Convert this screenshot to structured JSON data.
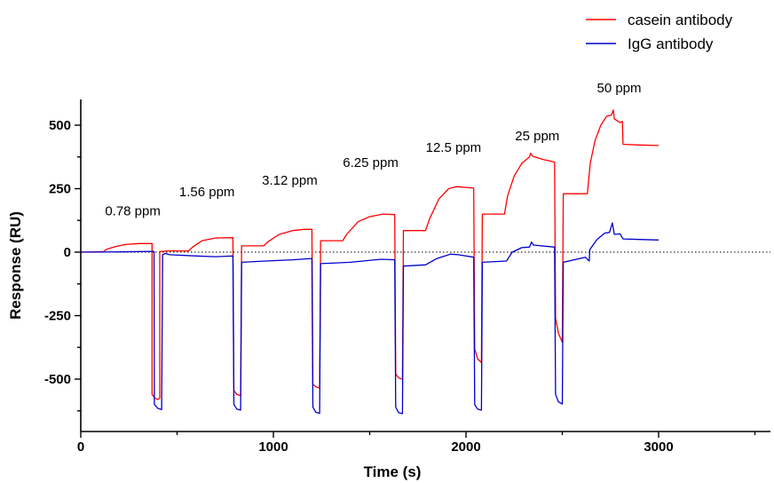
{
  "chart_data": {
    "type": "line",
    "xlabel": "Time (s)",
    "ylabel": "Response (RU)",
    "xlim": [
      0,
      3600
    ],
    "ylim": [
      -720,
      600
    ],
    "x_ticks": [
      0,
      1000,
      2000,
      3000
    ],
    "y_ticks": [
      500,
      250,
      0,
      -250,
      -500
    ],
    "x_tick_labels": [
      "0",
      "1000",
      "2000",
      "3000"
    ],
    "y_tick_labels": [
      "500",
      "250",
      "0",
      "-250",
      "-500"
    ],
    "zero_reference_line": true,
    "grid": false,
    "legend_position": "top-right",
    "annotations": [
      {
        "text": "0.78 ppm",
        "x": 270,
        "y": 145
      },
      {
        "text": "1.56 ppm",
        "x": 655,
        "y": 220
      },
      {
        "text": "3.12 ppm",
        "x": 1085,
        "y": 265
      },
      {
        "text": "6.25 ppm",
        "x": 1505,
        "y": 335
      },
      {
        "text": "12.5 ppm",
        "x": 1935,
        "y": 395
      },
      {
        "text": "25 ppm",
        "x": 2370,
        "y": 440
      },
      {
        "text": "50 ppm",
        "x": 2795,
        "y": 630
      }
    ],
    "series": [
      {
        "name": "casein antibody",
        "color": "#ff0000",
        "points": [
          [
            0,
            0
          ],
          [
            120,
            2
          ],
          [
            130,
            10
          ],
          [
            180,
            22
          ],
          [
            230,
            30
          ],
          [
            300,
            34
          ],
          [
            370,
            34
          ],
          [
            370,
            -560
          ],
          [
            385,
            -575
          ],
          [
            400,
            -580
          ],
          [
            410,
            -575
          ],
          [
            410,
            2
          ],
          [
            450,
            5
          ],
          [
            560,
            5
          ],
          [
            580,
            20
          ],
          [
            630,
            45
          ],
          [
            700,
            56
          ],
          [
            790,
            57
          ],
          [
            795,
            -545
          ],
          [
            810,
            -560
          ],
          [
            830,
            -565
          ],
          [
            835,
            25
          ],
          [
            950,
            25
          ],
          [
            970,
            40
          ],
          [
            1030,
            70
          ],
          [
            1100,
            85
          ],
          [
            1160,
            90
          ],
          [
            1200,
            90
          ],
          [
            1205,
            -520
          ],
          [
            1220,
            -530
          ],
          [
            1240,
            -535
          ],
          [
            1245,
            45
          ],
          [
            1360,
            45
          ],
          [
            1380,
            70
          ],
          [
            1440,
            120
          ],
          [
            1500,
            140
          ],
          [
            1570,
            150
          ],
          [
            1630,
            148
          ],
          [
            1635,
            -480
          ],
          [
            1650,
            -495
          ],
          [
            1670,
            -500
          ],
          [
            1675,
            85
          ],
          [
            1790,
            85
          ],
          [
            1810,
            130
          ],
          [
            1860,
            210
          ],
          [
            1910,
            250
          ],
          [
            1950,
            258
          ],
          [
            2040,
            252
          ],
          [
            2045,
            -380
          ],
          [
            2060,
            -420
          ],
          [
            2080,
            -435
          ],
          [
            2085,
            150
          ],
          [
            2200,
            150
          ],
          [
            2215,
            220
          ],
          [
            2250,
            300
          ],
          [
            2290,
            350
          ],
          [
            2330,
            375
          ],
          [
            2335,
            390
          ],
          [
            2345,
            378
          ],
          [
            2400,
            365
          ],
          [
            2460,
            355
          ],
          [
            2465,
            -260
          ],
          [
            2480,
            -320
          ],
          [
            2500,
            -355
          ],
          [
            2505,
            230
          ],
          [
            2630,
            230
          ],
          [
            2645,
            350
          ],
          [
            2670,
            440
          ],
          [
            2700,
            500
          ],
          [
            2730,
            535
          ],
          [
            2755,
            540
          ],
          [
            2765,
            560
          ],
          [
            2770,
            525
          ],
          [
            2800,
            510
          ],
          [
            2812,
            515
          ],
          [
            2815,
            425
          ],
          [
            2900,
            422
          ],
          [
            3000,
            420
          ]
        ]
      },
      {
        "name": "IgG antibody",
        "color": "#0000cc",
        "points": [
          [
            0,
            0
          ],
          [
            200,
            1
          ],
          [
            380,
            3
          ],
          [
            382,
            -600
          ],
          [
            400,
            -615
          ],
          [
            420,
            -620
          ],
          [
            425,
            -10
          ],
          [
            440,
            -5
          ],
          [
            460,
            -10
          ],
          [
            600,
            -15
          ],
          [
            700,
            -18
          ],
          [
            790,
            -15
          ],
          [
            795,
            -600
          ],
          [
            810,
            -618
          ],
          [
            830,
            -622
          ],
          [
            835,
            -40
          ],
          [
            960,
            -35
          ],
          [
            1100,
            -30
          ],
          [
            1200,
            -25
          ],
          [
            1205,
            -610
          ],
          [
            1220,
            -630
          ],
          [
            1240,
            -635
          ],
          [
            1245,
            -45
          ],
          [
            1400,
            -40
          ],
          [
            1560,
            -28
          ],
          [
            1630,
            -30
          ],
          [
            1635,
            -610
          ],
          [
            1650,
            -632
          ],
          [
            1670,
            -636
          ],
          [
            1675,
            -55
          ],
          [
            1790,
            -50
          ],
          [
            1850,
            -25
          ],
          [
            1920,
            -8
          ],
          [
            1960,
            -10
          ],
          [
            2040,
            -20
          ],
          [
            2045,
            -600
          ],
          [
            2060,
            -618
          ],
          [
            2080,
            -622
          ],
          [
            2085,
            -40
          ],
          [
            2210,
            -35
          ],
          [
            2240,
            0
          ],
          [
            2290,
            18
          ],
          [
            2330,
            20
          ],
          [
            2340,
            40
          ],
          [
            2350,
            28
          ],
          [
            2460,
            20
          ],
          [
            2465,
            -560
          ],
          [
            2480,
            -590
          ],
          [
            2500,
            -598
          ],
          [
            2505,
            -40
          ],
          [
            2620,
            -20
          ],
          [
            2640,
            -35
          ],
          [
            2643,
            10
          ],
          [
            2680,
            50
          ],
          [
            2720,
            75
          ],
          [
            2745,
            78
          ],
          [
            2760,
            115
          ],
          [
            2770,
            70
          ],
          [
            2800,
            72
          ],
          [
            2815,
            52
          ],
          [
            2900,
            50
          ],
          [
            3000,
            48
          ]
        ]
      }
    ]
  }
}
